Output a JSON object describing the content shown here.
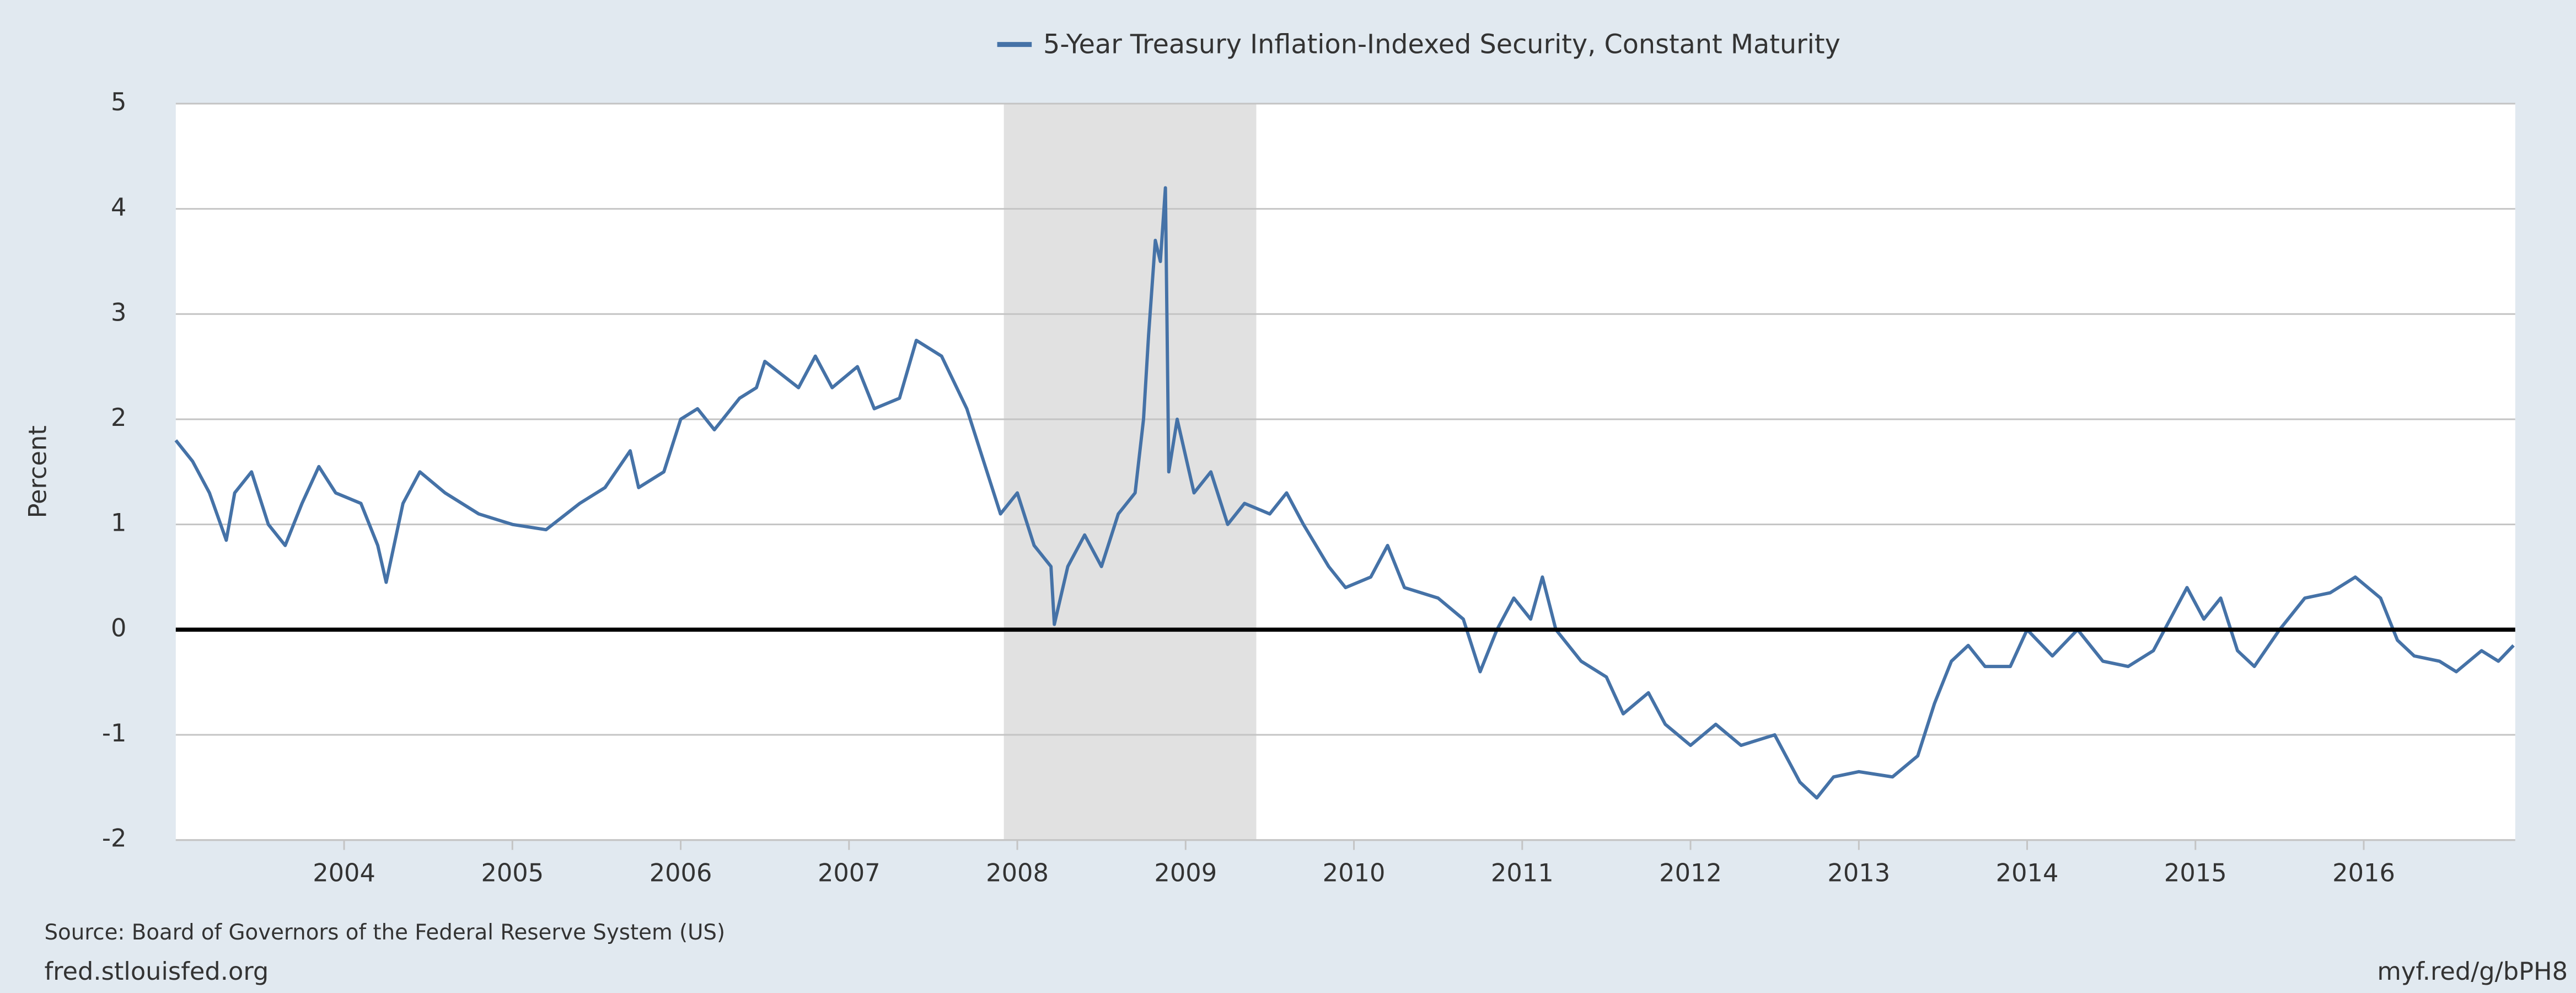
{
  "chart_data": {
    "type": "line",
    "ylabel": "Percent",
    "source": "Source: Board of Governors of the Federal Reserve System (US)",
    "footer_left": "fred.stlouisfed.org",
    "footer_right": "myf.red/g/bPH8",
    "xlim": [
      2003.0,
      2016.9
    ],
    "xticks": [
      2004,
      2005,
      2006,
      2007,
      2008,
      2009,
      2010,
      2011,
      2012,
      2013,
      2014,
      2015,
      2016
    ],
    "ylim": [
      -2,
      5
    ],
    "yticks": [
      -2,
      -1,
      0,
      1,
      2,
      3,
      4,
      5
    ],
    "grid": true,
    "zero_line": true,
    "recession": [
      2007.92,
      2009.42
    ],
    "legend": "top",
    "series": [
      {
        "name": "5-Year Treasury Inflation-Indexed Security, Constant Maturity",
        "color": "#4572a7",
        "x": [
          2003.0,
          2003.1,
          2003.2,
          2003.3,
          2003.35,
          2003.45,
          2003.55,
          2003.65,
          2003.75,
          2003.85,
          2003.95,
          2004.1,
          2004.2,
          2004.25,
          2004.35,
          2004.45,
          2004.6,
          2004.8,
          2005.0,
          2005.2,
          2005.4,
          2005.55,
          2005.7,
          2005.75,
          2005.9,
          2006.0,
          2006.1,
          2006.2,
          2006.35,
          2006.45,
          2006.5,
          2006.7,
          2006.8,
          2006.9,
          2007.05,
          2007.15,
          2007.3,
          2007.4,
          2007.55,
          2007.7,
          2007.8,
          2007.9,
          2008.0,
          2008.1,
          2008.2,
          2008.22,
          2008.3,
          2008.4,
          2008.5,
          2008.6,
          2008.7,
          2008.75,
          2008.78,
          2008.82,
          2008.85,
          2008.88,
          2008.9,
          2008.95,
          2009.05,
          2009.15,
          2009.25,
          2009.35,
          2009.5,
          2009.6,
          2009.7,
          2009.85,
          2009.95,
          2010.1,
          2010.2,
          2010.3,
          2010.5,
          2010.65,
          2010.75,
          2010.85,
          2010.95,
          2011.05,
          2011.12,
          2011.2,
          2011.35,
          2011.5,
          2011.6,
          2011.75,
          2011.85,
          2012.0,
          2012.15,
          2012.3,
          2012.5,
          2012.65,
          2012.75,
          2012.85,
          2013.0,
          2013.2,
          2013.35,
          2013.45,
          2013.55,
          2013.65,
          2013.75,
          2013.9,
          2014.0,
          2014.15,
          2014.3,
          2014.45,
          2014.6,
          2014.75,
          2014.85,
          2014.95,
          2015.05,
          2015.15,
          2015.25,
          2015.35,
          2015.5,
          2015.65,
          2015.8,
          2015.95,
          2016.1,
          2016.2,
          2016.3,
          2016.45,
          2016.55,
          2016.7,
          2016.8,
          2016.89
        ],
        "values": [
          1.8,
          1.6,
          1.3,
          0.85,
          1.3,
          1.5,
          1.0,
          0.8,
          1.2,
          1.55,
          1.3,
          1.2,
          0.8,
          0.45,
          1.2,
          1.5,
          1.3,
          1.1,
          1.0,
          0.95,
          1.2,
          1.35,
          1.7,
          1.35,
          1.5,
          2.0,
          2.1,
          1.9,
          2.2,
          2.3,
          2.55,
          2.3,
          2.6,
          2.3,
          2.5,
          2.1,
          2.2,
          2.75,
          2.6,
          2.1,
          1.6,
          1.1,
          1.3,
          0.8,
          0.6,
          0.05,
          0.6,
          0.9,
          0.6,
          1.1,
          1.3,
          2.0,
          2.8,
          3.7,
          3.5,
          4.2,
          1.5,
          2.0,
          1.3,
          1.5,
          1.0,
          1.2,
          1.1,
          1.3,
          1.0,
          0.6,
          0.4,
          0.5,
          0.8,
          0.4,
          0.3,
          0.1,
          -0.4,
          0.0,
          0.3,
          0.1,
          0.5,
          0.0,
          -0.3,
          -0.45,
          -0.8,
          -0.6,
          -0.9,
          -1.1,
          -0.9,
          -1.1,
          -1.0,
          -1.45,
          -1.6,
          -1.4,
          -1.35,
          -1.4,
          -1.2,
          -0.7,
          -0.3,
          -0.15,
          -0.35,
          -0.35,
          0.0,
          -0.25,
          0.0,
          -0.3,
          -0.35,
          -0.2,
          0.1,
          0.4,
          0.1,
          0.3,
          -0.2,
          -0.35,
          0.0,
          0.3,
          0.35,
          0.5,
          0.3,
          -0.1,
          -0.25,
          -0.3,
          -0.4,
          -0.2,
          -0.3,
          -0.15
        ]
      }
    ]
  }
}
